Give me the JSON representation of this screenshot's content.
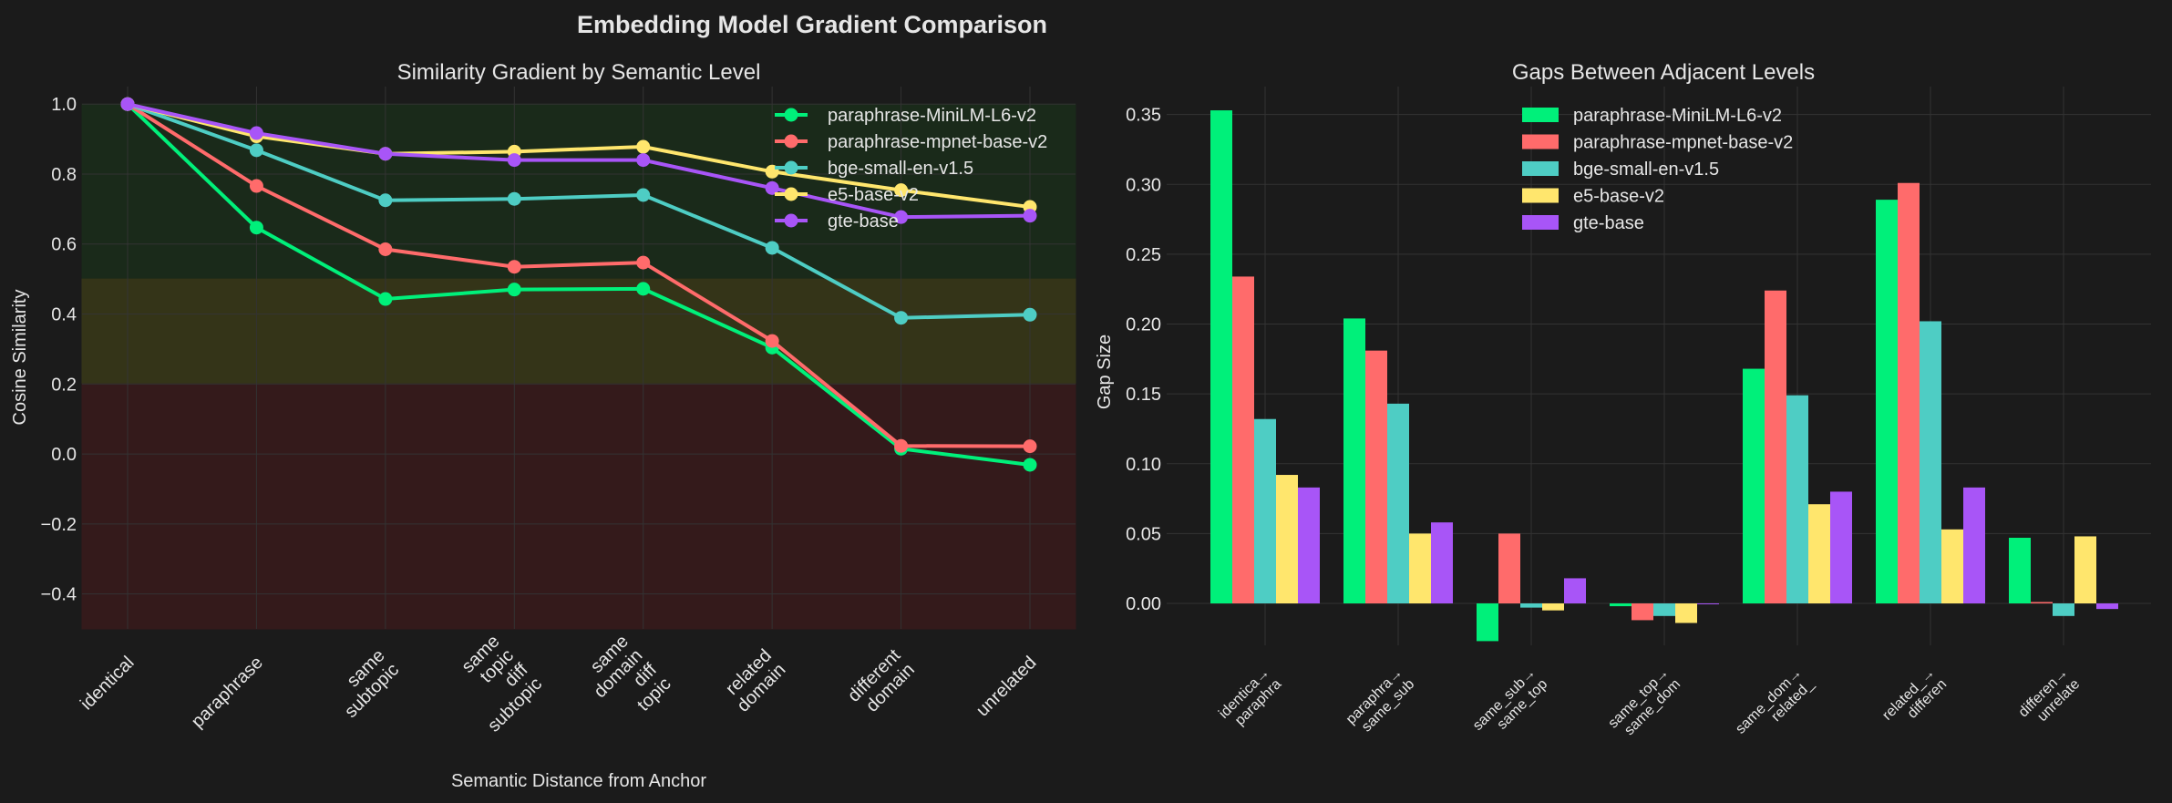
{
  "figure": {
    "title": "Embedding Model Gradient Comparison"
  },
  "colors": {
    "background": "#1b1b1b",
    "text": "#e6e6e6",
    "grid": "#333333",
    "zone_high": "#1a2a1a",
    "zone_mid": "#343418",
    "zone_low": "#341a1b",
    "series": [
      "#00f07a",
      "#ff6b6b",
      "#4ecdc4",
      "#ffe66d",
      "#a855f7"
    ]
  },
  "chart_data": [
    {
      "type": "line",
      "title": "Similarity Gradient by Semantic Level",
      "xlabel": "Semantic Distance from Anchor",
      "ylabel": "Cosine Similarity",
      "ylim": [
        -0.5,
        1.05
      ],
      "yticks": [
        -0.4,
        -0.2,
        0.0,
        0.2,
        0.4,
        0.6,
        0.8,
        1.0
      ],
      "ytick_labels": [
        "−0.4",
        "−0.2",
        "0.0",
        "0.2",
        "0.4",
        "0.6",
        "0.8",
        "1.0"
      ],
      "categories": [
        "identical",
        "paraphrase",
        "same subtopic",
        "same topic diff subtopic",
        "same domain diff topic",
        "related domain",
        "different domain",
        "unrelated"
      ],
      "category_labels": [
        [
          "identical"
        ],
        [
          "paraphrase"
        ],
        [
          "same",
          "subtopic"
        ],
        [
          "same",
          "topic",
          "diff",
          "subtopic"
        ],
        [
          "same",
          "domain",
          "diff",
          "topic"
        ],
        [
          "related",
          "domain"
        ],
        [
          "different",
          "domain"
        ],
        [
          "unrelated"
        ]
      ],
      "zones": [
        {
          "from": 0.5,
          "to": 1.0,
          "color": "#1a2a1a"
        },
        {
          "from": 0.2,
          "to": 0.5,
          "color": "#343418"
        },
        {
          "from": -0.5,
          "to": 0.2,
          "color": "#341a1b"
        }
      ],
      "grid": true,
      "legend": "top-right",
      "series": [
        {
          "name": "paraphrase-MiniLM-L6-v2",
          "color": "#00f07a",
          "values": [
            1.0,
            0.647,
            0.443,
            0.47,
            0.472,
            0.304,
            0.015,
            -0.031
          ]
        },
        {
          "name": "paraphrase-mpnet-base-v2",
          "color": "#ff6b6b",
          "values": [
            1.0,
            0.766,
            0.585,
            0.535,
            0.547,
            0.323,
            0.023,
            0.022
          ]
        },
        {
          "name": "bge-small-en-v1.5",
          "color": "#4ecdc4",
          "values": [
            1.0,
            0.868,
            0.725,
            0.729,
            0.74,
            0.589,
            0.389,
            0.398
          ]
        },
        {
          "name": "e5-base-v2",
          "color": "#ffe66d",
          "values": [
            1.0,
            0.908,
            0.858,
            0.864,
            0.878,
            0.807,
            0.754,
            0.706
          ]
        },
        {
          "name": "gte-base",
          "color": "#a855f7",
          "values": [
            1.0,
            0.917,
            0.858,
            0.84,
            0.84,
            0.76,
            0.677,
            0.681
          ]
        }
      ]
    },
    {
      "type": "bar",
      "title": "Gaps Between Adjacent Levels",
      "xlabel": "",
      "ylabel": "Gap Size",
      "ylim": [
        -0.03,
        0.37
      ],
      "yticks": [
        0.0,
        0.05,
        0.1,
        0.15,
        0.2,
        0.25,
        0.3,
        0.35
      ],
      "ytick_labels": [
        "0.00",
        "0.05",
        "0.10",
        "0.15",
        "0.20",
        "0.25",
        "0.30",
        "0.35"
      ],
      "categories": [
        "identica→ paraphra",
        "paraphra→ same_sub",
        "same_sub→ same_top",
        "same_top→ same_dom",
        "same_dom→ related_",
        "related_→ differen",
        "differen→ unrelate"
      ],
      "category_labels": [
        [
          "identica→",
          "paraphra"
        ],
        [
          "paraphra→",
          "same_sub"
        ],
        [
          "same_sub→",
          "same_top"
        ],
        [
          "same_top→",
          "same_dom"
        ],
        [
          "same_dom→",
          "related_"
        ],
        [
          "related_→",
          "differen"
        ],
        [
          "differen→",
          "unrelate"
        ]
      ],
      "grid": true,
      "legend": "top-center",
      "series": [
        {
          "name": "paraphrase-MiniLM-L6-v2",
          "color": "#00f07a",
          "values": [
            0.353,
            0.204,
            -0.027,
            -0.002,
            0.168,
            0.289,
            0.047
          ]
        },
        {
          "name": "paraphrase-mpnet-base-v2",
          "color": "#ff6b6b",
          "values": [
            0.234,
            0.181,
            0.05,
            -0.012,
            0.224,
            0.301,
            0.001
          ]
        },
        {
          "name": "bge-small-en-v1.5",
          "color": "#4ecdc4",
          "values": [
            0.132,
            0.143,
            -0.003,
            -0.009,
            0.149,
            0.202,
            -0.009
          ]
        },
        {
          "name": "e5-base-v2",
          "color": "#ffe66d",
          "values": [
            0.092,
            0.05,
            -0.005,
            -0.014,
            0.071,
            0.053,
            0.048
          ]
        },
        {
          "name": "gte-base",
          "color": "#a855f7",
          "values": [
            0.083,
            0.058,
            0.018,
            0.0,
            0.08,
            0.083,
            -0.004
          ]
        }
      ]
    }
  ]
}
